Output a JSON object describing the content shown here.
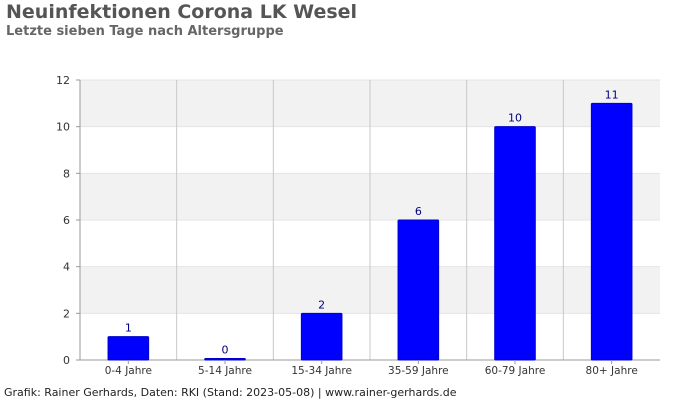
{
  "title": "Neuinfektionen Corona LK Wesel",
  "subtitle": "Letzte sieben Tage nach Altersgruppe",
  "footer": "Grafik: Rainer Gerhards, Daten: RKI (Stand: 2023-05-08) | www.rainer-gerhards.de",
  "colors": {
    "bar": "#0000ff",
    "bar_label": "#000080",
    "band": "#f2f2f2",
    "grid": "#c8c8c8",
    "axis": "#999999",
    "tick_text": "#333333"
  },
  "chart_data": {
    "type": "bar",
    "categories": [
      "0-4 Jahre",
      "5-14 Jahre",
      "15-34 Jahre",
      "35-59 Jahre",
      "60-79 Jahre",
      "80+ Jahre"
    ],
    "values": [
      1,
      0,
      2,
      6,
      10,
      11
    ],
    "data_labels": [
      "1",
      "0",
      "2",
      "6",
      "10",
      "11"
    ],
    "ylim": [
      0,
      12
    ],
    "yticks": [
      0,
      2,
      4,
      6,
      8,
      10,
      12
    ],
    "ytick_labels": [
      "0",
      "2",
      "4",
      "6",
      "8",
      "10",
      "12"
    ],
    "grid": true,
    "legend": "none"
  }
}
